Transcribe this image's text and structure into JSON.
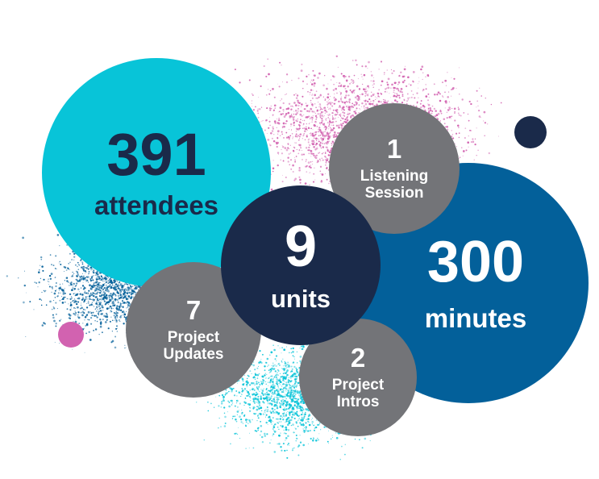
{
  "stats": {
    "attendees": {
      "value": "391",
      "label": "attendees",
      "color": "#08c4d8"
    },
    "minutes": {
      "value": "300",
      "label": "minutes",
      "color": "#03609a"
    },
    "units": {
      "value": "9",
      "label": "units",
      "color": "#1a2a4a"
    },
    "listening": {
      "value": "1",
      "label_line1": "Listening",
      "label_line2": "Session",
      "color": "#737478"
    },
    "updates": {
      "value": "7",
      "label_line1": "Project",
      "label_line2": "Updates",
      "color": "#737478"
    },
    "intros": {
      "value": "2",
      "label_line1": "Project",
      "label_line2": "Intros",
      "color": "#737478"
    }
  },
  "accent_colors": {
    "pink": "#d262b0",
    "teal": "#08c4d8",
    "blue": "#03609a",
    "navy": "#1a2a4a"
  }
}
